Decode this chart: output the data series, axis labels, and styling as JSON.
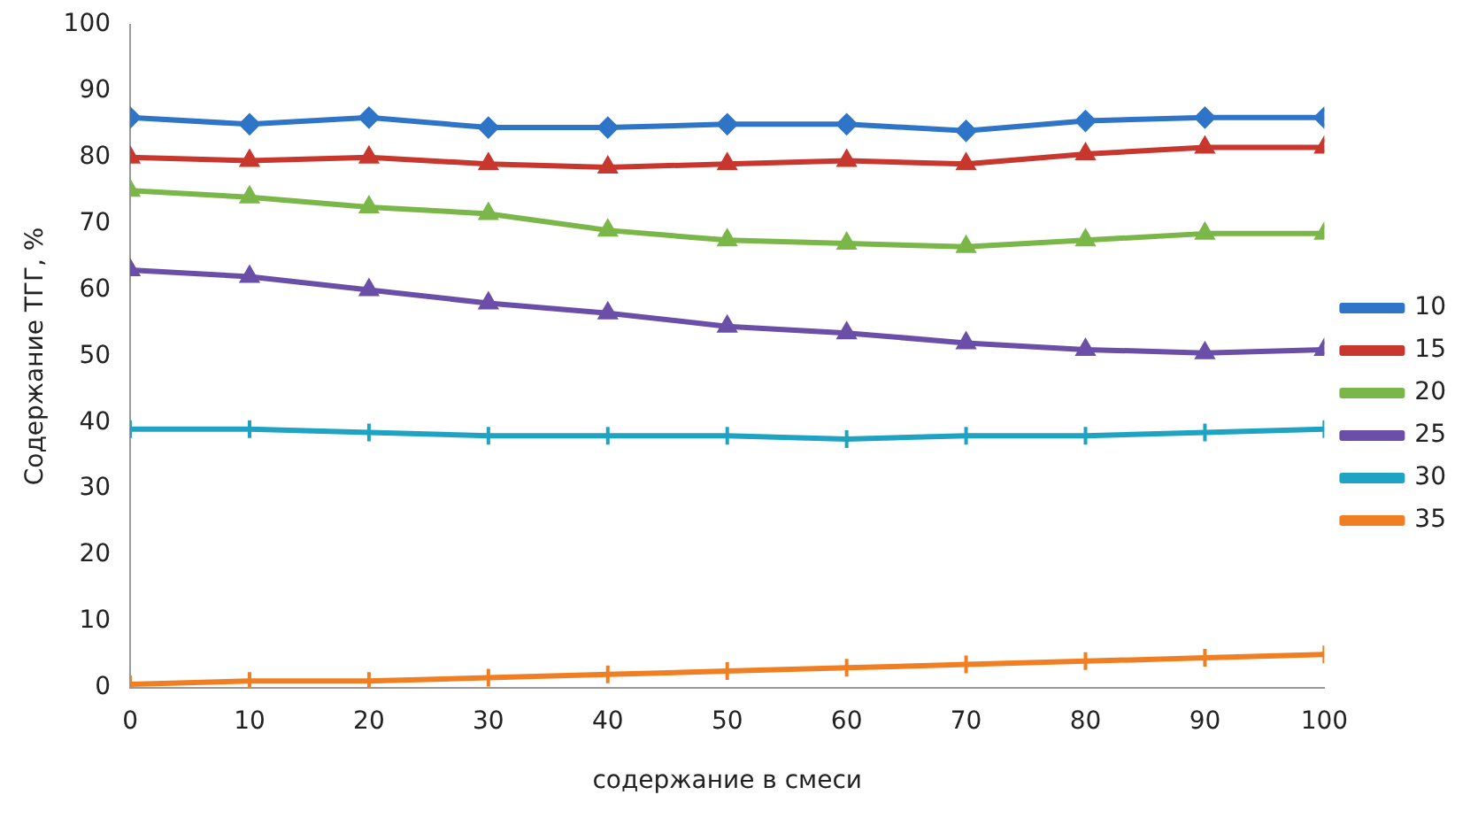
{
  "chart_data": {
    "type": "line",
    "xlabel": "содержание в смеси",
    "ylabel": "Содержание ТГГ, %",
    "x": [
      0,
      10,
      20,
      30,
      40,
      50,
      60,
      70,
      80,
      90,
      100
    ],
    "xlim": [
      0,
      100
    ],
    "xticks": [
      0,
      10,
      20,
      30,
      40,
      50,
      60,
      70,
      80,
      90,
      100
    ],
    "ylim": [
      0,
      100
    ],
    "yticks": [
      0,
      10,
      20,
      30,
      40,
      50,
      60,
      70,
      80,
      90,
      100
    ],
    "grid": false,
    "legend": "right",
    "line_style": "solid",
    "series": [
      {
        "name": "10",
        "color": "#2e75c8",
        "marker": "diamond",
        "values": [
          86,
          85,
          86,
          84.5,
          84.5,
          85,
          85,
          84,
          85.5,
          86,
          86
        ]
      },
      {
        "name": "15",
        "color": "#c8372d",
        "marker": "triangle",
        "values": [
          80,
          79.5,
          80,
          79,
          78.5,
          79,
          79.5,
          79,
          80.5,
          81.5,
          81.5
        ]
      },
      {
        "name": "20",
        "color": "#7ab648",
        "marker": "triangle",
        "values": [
          75,
          74,
          72.5,
          71.5,
          69,
          67.5,
          67,
          66.5,
          67.5,
          68.5,
          68.5
        ]
      },
      {
        "name": "25",
        "color": "#6a4ea8",
        "marker": "triangle",
        "values": [
          63,
          62,
          60,
          58,
          56.5,
          54.5,
          53.5,
          52,
          51,
          50.5,
          51
        ]
      },
      {
        "name": "30",
        "color": "#1fa3c3",
        "marker": "cross",
        "values": [
          39,
          39,
          38.5,
          38,
          38,
          38,
          37.5,
          38,
          38,
          38.5,
          39
        ]
      },
      {
        "name": "35",
        "color": "#f07f23",
        "marker": "cross",
        "values": [
          0.5,
          1,
          1,
          1.5,
          2,
          2.5,
          3,
          3.5,
          4,
          4.5,
          5
        ]
      }
    ]
  }
}
